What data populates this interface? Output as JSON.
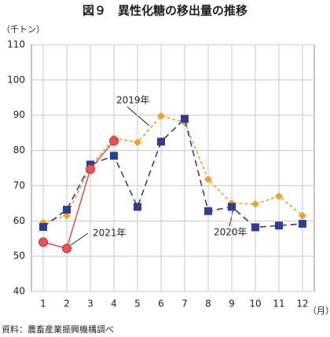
{
  "chart_data": {
    "type": "line",
    "title": "図９　異性化糖の移出量の推移",
    "y_unit": "（千トン）",
    "x_unit": "（月）",
    "source": "資料：農畜産業振興機構調べ",
    "categories": [
      "1",
      "2",
      "3",
      "4",
      "5",
      "6",
      "7",
      "8",
      "9",
      "10",
      "11",
      "12"
    ],
    "ylim": [
      40,
      110
    ],
    "yticks": [
      40,
      50,
      60,
      70,
      80,
      90,
      100,
      110
    ],
    "grid": true,
    "series": [
      {
        "name": "2019年",
        "color": "#f0a030",
        "dash": "4 3",
        "marker": "diamond",
        "values": [
          59.5,
          61.5,
          75.5,
          83.5,
          82.3,
          89.8,
          88,
          71.8,
          65,
          64.8,
          67,
          61.5
        ]
      },
      {
        "name": "2020年",
        "color": "#2e3f8f",
        "dash": "8 5",
        "marker": "square",
        "values": [
          58.3,
          63.2,
          76,
          78.5,
          64,
          82.5,
          89,
          62.8,
          64,
          58.2,
          58.7,
          59.2
        ]
      },
      {
        "name": "2021年",
        "color": "#e8525a",
        "dash": "",
        "marker": "circle",
        "values": [
          54,
          52.2,
          74.7,
          82.7,
          null,
          null,
          null,
          null,
          null,
          null,
          null,
          null
        ]
      }
    ]
  }
}
